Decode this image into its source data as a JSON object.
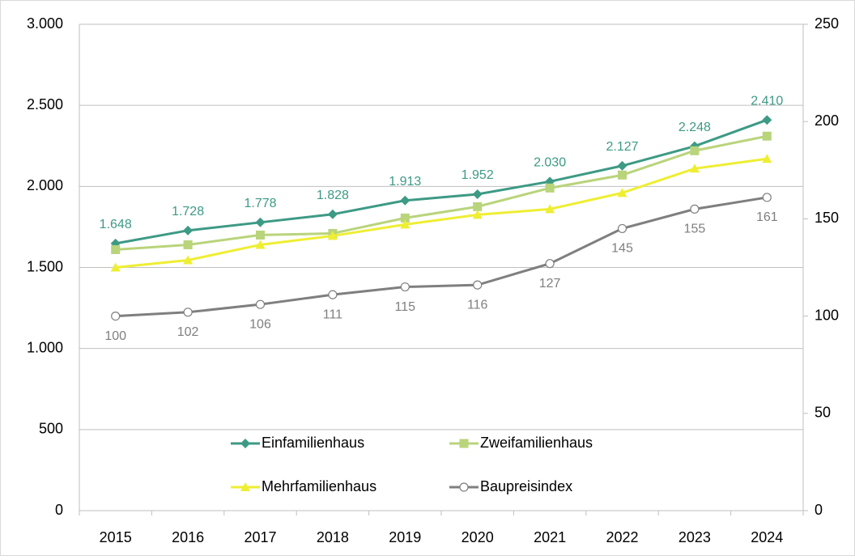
{
  "chart_data": {
    "type": "line",
    "categories": [
      "2015",
      "2016",
      "2017",
      "2018",
      "2019",
      "2020",
      "2021",
      "2022",
      "2023",
      "2024"
    ],
    "series": [
      {
        "name": "Einfamilienhaus",
        "color": "#3d9a85",
        "marker": "diamond",
        "data_labels": "above",
        "values": [
          1648,
          1728,
          1778,
          1828,
          1913,
          1952,
          2030,
          2127,
          2248,
          2410
        ],
        "value_labels": [
          "1.648",
          "1.728",
          "1.778",
          "1.828",
          "1.913",
          "1.952",
          "2.030",
          "2.127",
          "2.248",
          "2.410"
        ]
      },
      {
        "name": "Zweifamilienhaus",
        "color": "#b9d47b",
        "marker": "square",
        "values": [
          1610,
          1640,
          1700,
          1710,
          1805,
          1875,
          1990,
          2070,
          2220,
          2310
        ]
      },
      {
        "name": "Mehrfamilienhaus",
        "color": "#eeee33",
        "marker": "triangle",
        "values": [
          1500,
          1545,
          1640,
          1695,
          1765,
          1825,
          1860,
          1960,
          2110,
          2170
        ]
      },
      {
        "name": "Baupreisindex",
        "color": "#7f7f7f",
        "marker": "circle",
        "data_labels": "below",
        "axis": "y2",
        "values": [
          100,
          102,
          106,
          111,
          115,
          116,
          127,
          145,
          155,
          161
        ]
      }
    ],
    "ylim": [
      0,
      3000
    ],
    "yticks": [
      0,
      500,
      {
        "value": 1000,
        "label": "1.000"
      },
      {
        "value": 1500,
        "label": "1.500"
      },
      {
        "value": 2000,
        "label": "2.000"
      },
      {
        "value": 2500,
        "label": "2.500"
      },
      {
        "value": 3000,
        "label": "3.000"
      }
    ],
    "y2lim": [
      0,
      250
    ],
    "y2ticks": [
      0,
      50,
      100,
      150,
      200,
      250
    ],
    "grid": true,
    "legend": "bottom"
  }
}
